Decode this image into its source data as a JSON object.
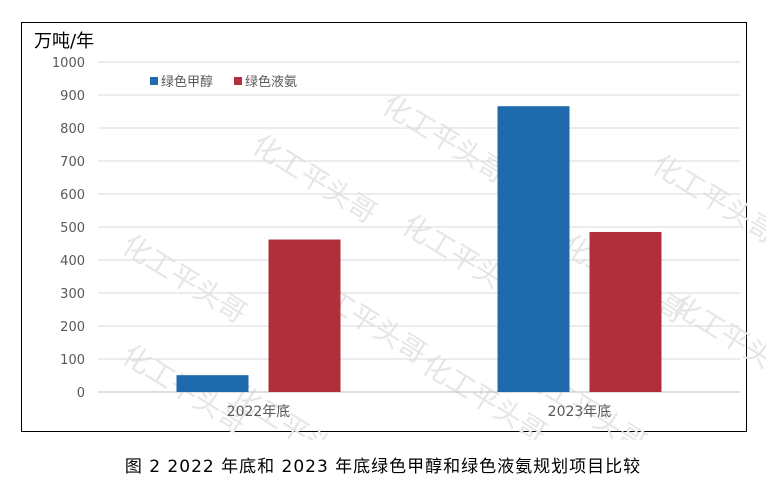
{
  "chart_data": {
    "type": "bar",
    "unit_label": "万吨/年",
    "categories": [
      "2022年底",
      "2023年底"
    ],
    "series": [
      {
        "name": "绿色甲醇",
        "values": [
          51,
          866
        ],
        "color": "#1f6aad"
      },
      {
        "name": "绿色液氨",
        "values": [
          462,
          485
        ],
        "color": "#b12e3b"
      }
    ],
    "ylim": [
      0,
      1000
    ],
    "yticks": [
      "0",
      "100",
      "200",
      "300",
      "400",
      "500",
      "600",
      "700",
      "800",
      "900",
      "1000"
    ],
    "grid": true,
    "legend_position": "top-left"
  },
  "watermark": "化工平头哥",
  "caption": "图 2  2022 年底和 2023 年底绿色甲醇和绿色液氨规划项目比较"
}
